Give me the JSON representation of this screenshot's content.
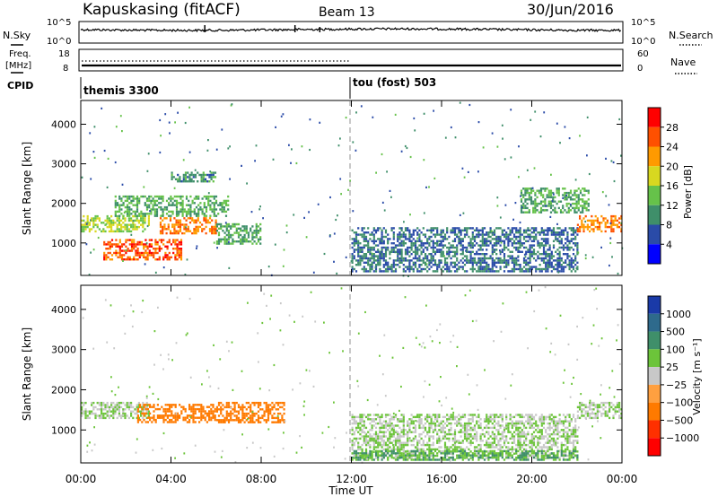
{
  "header": {
    "station": "Kapuskasing (fitACF)",
    "beam": "Beam 13",
    "date": "30/Jun/2016"
  },
  "noise_panel": {
    "left_label": "N.Sky",
    "right_label": "N.Search",
    "left_ticks": [
      "10^5",
      "10^0"
    ],
    "right_ticks": [
      "10^5",
      "10^0"
    ]
  },
  "freq_panel": {
    "left_label_1": "Freq.",
    "left_label_2": "[MHz]",
    "right_label": "Nave",
    "left_ticks": [
      "18",
      "8"
    ],
    "right_ticks": [
      "60",
      "0"
    ]
  },
  "cpid": {
    "label": "CPID",
    "segments": [
      {
        "name": "themis 3300",
        "start_hour": 0
      },
      {
        "name": "tou (fost) 503",
        "start_hour": 12
      }
    ]
  },
  "x_axis": {
    "label": "Time UT",
    "ticks": [
      "00:00",
      "04:00",
      "08:00",
      "12:00",
      "16:00",
      "20:00",
      "00:00"
    ],
    "range_hours": [
      0,
      24
    ]
  },
  "power_panel": {
    "ylabel": "Slant Range [km]",
    "yticks": [
      "4000",
      "3000",
      "2000",
      "1000"
    ],
    "yrange_km": [
      180,
      4600
    ],
    "colorbar_label": "Power [dB]",
    "colorbar_ticks": [
      "28",
      "24",
      "20",
      "16",
      "12",
      "8",
      "4"
    ],
    "colors": [
      "#0000ff",
      "#2a4ba8",
      "#3f8f6a",
      "#66c24a",
      "#d8d820",
      "#ff9a00",
      "#ff5000",
      "#ff0000"
    ]
  },
  "velocity_panel": {
    "ylabel": "Slant Range [km]",
    "yticks": [
      "4000",
      "3000",
      "2000",
      "1000"
    ],
    "yrange_km": [
      180,
      4600
    ],
    "colorbar_label": "Velocity [m s⁻¹]",
    "colorbar_ticks": [
      "1000",
      "500",
      "100",
      "25",
      "−25",
      "−100",
      "−500",
      "−1000"
    ],
    "colors": [
      "#1a3aa8",
      "#2e6a8c",
      "#3f8f6a",
      "#6cc43a",
      "#c8c8c8",
      "#ffa040",
      "#ff7a00",
      "#ff3000",
      "#ff0000"
    ]
  },
  "chart_data": {
    "type": "heatmap",
    "title": "Kapuskasing (fitACF)",
    "xlabel": "Time UT",
    "ylabel": "Slant Range [km]",
    "xlim_hours": [
      0,
      24
    ],
    "ylim_km": [
      180,
      4600
    ],
    "power_bands": [
      {
        "t": [
          0.0,
          3.0
        ],
        "r": [
          1300,
          1700
        ],
        "dB": 16
      },
      {
        "t": [
          1.0,
          4.5
        ],
        "r": [
          600,
          1100
        ],
        "dB": 26
      },
      {
        "t": [
          3.5,
          6.0
        ],
        "r": [
          1250,
          1650
        ],
        "dB": 24
      },
      {
        "t": [
          1.5,
          6.5
        ],
        "r": [
          1700,
          2200
        ],
        "dB": 12
      },
      {
        "t": [
          4.0,
          6.0
        ],
        "r": [
          2550,
          2800
        ],
        "dB": 10
      },
      {
        "t": [
          6.0,
          8.0
        ],
        "r": [
          1000,
          1500
        ],
        "dB": 12
      },
      {
        "t": [
          12.0,
          22.0
        ],
        "r": [
          300,
          1400
        ],
        "dB": 8
      },
      {
        "t": [
          19.5,
          22.5
        ],
        "r": [
          1800,
          2400
        ],
        "dB": 12
      },
      {
        "t": [
          22.0,
          24.0
        ],
        "r": [
          1300,
          1700
        ],
        "dB": 24
      }
    ],
    "velocity_bands": [
      {
        "t": [
          0.0,
          3.0
        ],
        "r": [
          1300,
          1700
        ],
        "v": 25
      },
      {
        "t": [
          2.5,
          6.0
        ],
        "r": [
          1200,
          1650
        ],
        "v": -200
      },
      {
        "t": [
          6.0,
          9.0
        ],
        "r": [
          1200,
          1700
        ],
        "v": -200
      },
      {
        "t": [
          12.0,
          22.0
        ],
        "r": [
          300,
          1400
        ],
        "v": 25
      },
      {
        "t": [
          12.0,
          22.0
        ],
        "r": [
          250,
          500
        ],
        "v": 100
      },
      {
        "t": [
          22.0,
          24.0
        ],
        "r": [
          1300,
          1700
        ],
        "v": 25
      }
    ]
  }
}
